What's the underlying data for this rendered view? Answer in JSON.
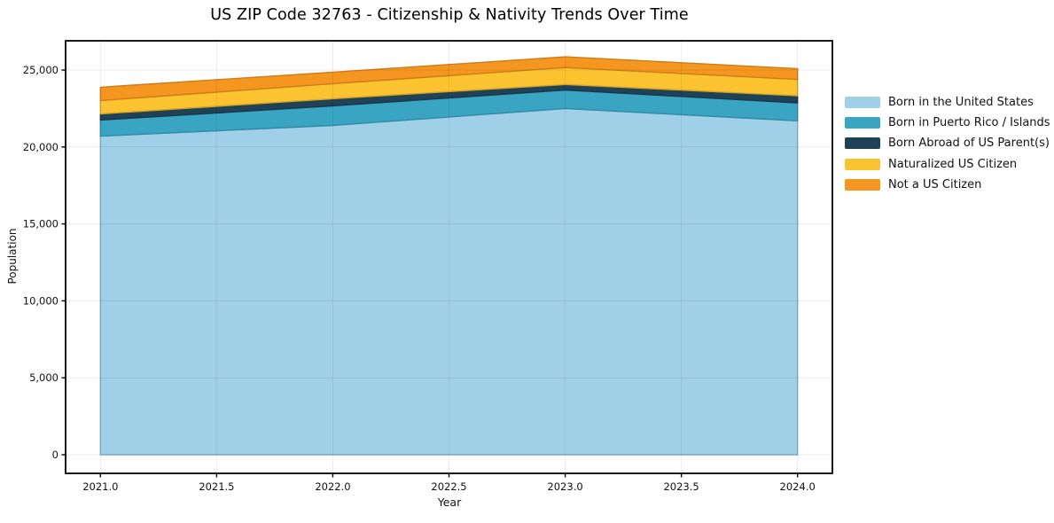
{
  "title": "US ZIP Code 32763 - Citizenship & Nativity Trends Over Time",
  "chart_data": {
    "type": "area",
    "stacked": true,
    "title": "US ZIP Code 32763 - Citizenship & Nativity Trends Over Time",
    "xlabel": "Year",
    "ylabel": "Population",
    "x": [
      2021,
      2022,
      2023,
      2024
    ],
    "series": [
      {
        "name": "Born in the United States",
        "color": "#a0d0e8",
        "values": [
          20700,
          21400,
          22500,
          21700
        ]
      },
      {
        "name": "Born in Puerto Rico / Islands",
        "color": "#3aa4c3",
        "values": [
          1050,
          1270,
          1200,
          1160
        ]
      },
      {
        "name": "Born Abroad of US Parent(s)",
        "color": "#1f4257",
        "values": [
          400,
          460,
          360,
          470
        ]
      },
      {
        "name": "Naturalized US Citizen",
        "color": "#fcc330",
        "values": [
          870,
          980,
          1100,
          1060
        ]
      },
      {
        "name": "Not a US Citizen",
        "color": "#f4961f",
        "values": [
          860,
          750,
          700,
          700
        ]
      }
    ],
    "stack_totals": [
      23880,
      24860,
      25860,
      25090
    ],
    "x_ticks": [
      {
        "value": 2021.0,
        "label": "2021.0"
      },
      {
        "value": 2021.5,
        "label": "2021.5"
      },
      {
        "value": 2022.0,
        "label": "2022.0"
      },
      {
        "value": 2022.5,
        "label": "2022.5"
      },
      {
        "value": 2023.0,
        "label": "2023.0"
      },
      {
        "value": 2023.5,
        "label": "2023.5"
      },
      {
        "value": 2024.0,
        "label": "2024.0"
      }
    ],
    "y_ticks": [
      {
        "value": 0,
        "label": "0"
      },
      {
        "value": 5000,
        "label": "5,000"
      },
      {
        "value": 10000,
        "label": "10,000"
      },
      {
        "value": 15000,
        "label": "15,000"
      },
      {
        "value": 20000,
        "label": "20,000"
      },
      {
        "value": 25000,
        "label": "25,000"
      }
    ],
    "xlim": [
      2020.85,
      2024.15
    ],
    "ylim": [
      -1210,
      26900
    ],
    "grid": true,
    "legend_position": "right-outside",
    "colors": {
      "background": "#ffffff",
      "spine": "#000000",
      "grid": "rgba(0,0,0,0.07)",
      "tick_text": "#111111"
    }
  }
}
